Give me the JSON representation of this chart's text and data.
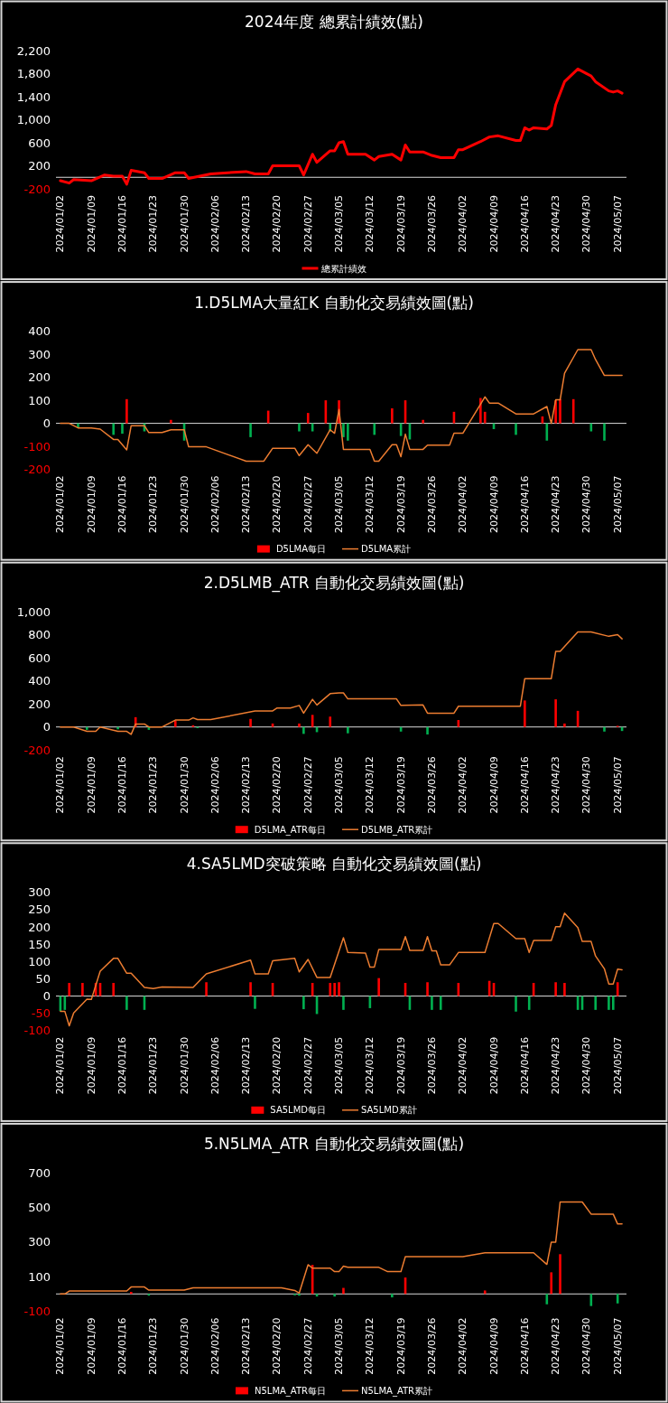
{
  "chart_data": [
    {
      "type": "line",
      "title": "2024年度 總累計績效(點)",
      "legend": "bottom",
      "xlim": [
        "2024-01-01",
        "2024-05-09"
      ],
      "ylim": [
        -200,
        2200
      ],
      "yticks": [
        -200,
        200,
        600,
        {
          "value": 1000,
          "label": "1,000"
        },
        {
          "value": 1400,
          "label": "1,400"
        },
        {
          "value": 1800,
          "label": "1,800"
        },
        {
          "value": 2200,
          "label": "2,200"
        }
      ],
      "xticks": [
        {
          "value": "2024-01-02",
          "label": "2024/01/02"
        },
        {
          "value": "2024-01-09",
          "label": "2024/01/09"
        },
        {
          "value": "2024-01-16",
          "label": "2024/01/16"
        },
        {
          "value": "2024-01-23",
          "label": "2024/01/23"
        },
        {
          "value": "2024-01-30",
          "label": "2024/01/30"
        },
        {
          "value": "2024-02-06",
          "label": "2024/02/06"
        },
        {
          "value": "2024-02-13",
          "label": "2024/02/13"
        },
        {
          "value": "2024-02-20",
          "label": "2024/02/20"
        },
        {
          "value": "2024-02-27",
          "label": "2024/02/27"
        },
        {
          "value": "2024-03-05",
          "label": "2024/03/05"
        },
        {
          "value": "2024-03-12",
          "label": "2024/03/12"
        },
        {
          "value": "2024-03-19",
          "label": "2024/03/19"
        },
        {
          "value": "2024-03-26",
          "label": "2024/03/26"
        },
        {
          "value": "2024-04-02",
          "label": "2024/04/02"
        },
        {
          "value": "2024-04-09",
          "label": "2024/04/09"
        },
        {
          "value": "2024-04-16",
          "label": "2024/04/16"
        },
        {
          "value": "2024-04-23",
          "label": "2024/04/23"
        },
        {
          "value": "2024-04-30",
          "label": "2024/04/30"
        },
        {
          "value": "2024-05-07",
          "label": "2024/05/07"
        }
      ],
      "series": [
        {
          "name": "總累計績效",
          "color": "#ff0000",
          "x": [
            "2024-01-02",
            "2024-01-04",
            "2024-01-05",
            "2024-01-09",
            "2024-01-12",
            "2024-01-14",
            "2024-01-16",
            "2024-01-17",
            "2024-01-18",
            "2024-01-21",
            "2024-01-22",
            "2024-01-25",
            "2024-01-28",
            "2024-01-30",
            "2024-01-31",
            "2024-02-05",
            "2024-02-13",
            "2024-02-15",
            "2024-02-18",
            "2024-02-19",
            "2024-02-25",
            "2024-02-26",
            "2024-02-28",
            "2024-02-29",
            "2024-03-03",
            "2024-03-04",
            "2024-03-05",
            "2024-03-06",
            "2024-03-07",
            "2024-03-11",
            "2024-03-13",
            "2024-03-14",
            "2024-03-17",
            "2024-03-19",
            "2024-03-20",
            "2024-03-21",
            "2024-03-24",
            "2024-03-26",
            "2024-03-28",
            "2024-03-31",
            "2024-04-01",
            "2024-04-02",
            "2024-04-06",
            "2024-04-08",
            "2024-04-10",
            "2024-04-14",
            "2024-04-15",
            "2024-04-16",
            "2024-04-17",
            "2024-04-18",
            "2024-04-21",
            "2024-04-22",
            "2024-04-23",
            "2024-04-25",
            "2024-04-28",
            "2024-05-01",
            "2024-05-02",
            "2024-05-05",
            "2024-05-06",
            "2024-05-07",
            "2024-05-08"
          ],
          "values": [
            -60,
            -100,
            -40,
            -60,
            40,
            20,
            20,
            -120,
            120,
            80,
            -20,
            -20,
            80,
            80,
            -20,
            60,
            100,
            60,
            60,
            200,
            200,
            40,
            400,
            260,
            460,
            460,
            600,
            620,
            400,
            400,
            300,
            360,
            400,
            300,
            560,
            440,
            440,
            380,
            340,
            340,
            480,
            480,
            620,
            700,
            720,
            640,
            640,
            860,
            820,
            860,
            840,
            900,
            1260,
            1660,
            1880,
            1760,
            1660,
            1500,
            1480,
            1500,
            1460
          ]
        }
      ]
    },
    {
      "type": "bar",
      "title": "1.D5LMA大量紅K 自動化交易績效圖(點)",
      "legend": "bottom",
      "xlim": [
        "2024-01-01",
        "2024-05-09"
      ],
      "ylim": [
        -200,
        400
      ],
      "yticks": [
        -200,
        -100,
        0,
        100,
        200,
        300,
        400
      ],
      "xticks": [
        {
          "value": "2024-01-02",
          "label": "2024/01/02"
        },
        {
          "value": "2024-01-09",
          "label": "2024/01/09"
        },
        {
          "value": "2024-01-16",
          "label": "2024/01/16"
        },
        {
          "value": "2024-01-23",
          "label": "2024/01/23"
        },
        {
          "value": "2024-01-30",
          "label": "2024/01/30"
        },
        {
          "value": "2024-02-06",
          "label": "2024/02/06"
        },
        {
          "value": "2024-02-13",
          "label": "2024/02/13"
        },
        {
          "value": "2024-02-20",
          "label": "2024/02/20"
        },
        {
          "value": "2024-02-27",
          "label": "2024/02/27"
        },
        {
          "value": "2024-03-05",
          "label": "2024/03/05"
        },
        {
          "value": "2024-03-12",
          "label": "2024/03/12"
        },
        {
          "value": "2024-03-19",
          "label": "2024/03/19"
        },
        {
          "value": "2024-03-26",
          "label": "2024/03/26"
        },
        {
          "value": "2024-04-02",
          "label": "2024/04/02"
        },
        {
          "value": "2024-04-09",
          "label": "2024/04/09"
        },
        {
          "value": "2024-04-16",
          "label": "2024/04/16"
        },
        {
          "value": "2024-04-23",
          "label": "2024/04/23"
        },
        {
          "value": "2024-04-30",
          "label": "2024/04/30"
        },
        {
          "value": "2024-05-07",
          "label": "2024/05/07"
        }
      ],
      "series": [
        {
          "name": "D5LMA每日",
          "color": "#ff0000",
          "x": [
            "2024-01-06",
            "2024-01-14",
            "2024-01-16",
            "2024-01-17",
            "2024-01-21",
            "2024-01-27",
            "2024-01-30",
            "2024-02-14",
            "2024-02-18",
            "2024-02-25",
            "2024-02-27",
            "2024-02-28",
            "2024-03-02",
            "2024-03-03",
            "2024-03-05",
            "2024-03-06",
            "2024-03-07",
            "2024-03-13",
            "2024-03-17",
            "2024-03-19",
            "2024-03-20",
            "2024-03-21",
            "2024-03-24",
            "2024-03-31",
            "2024-04-06",
            "2024-04-07",
            "2024-04-09",
            "2024-04-14",
            "2024-04-20",
            "2024-04-21",
            "2024-04-23",
            "2024-04-24",
            "2024-04-27",
            "2024-05-01",
            "2024-05-04"
          ],
          "values": [
            -20,
            -50,
            -45,
            105,
            -35,
            15,
            -75,
            -60,
            55,
            -35,
            45,
            -35,
            100,
            -35,
            100,
            -60,
            -75,
            -50,
            65,
            -55,
            100,
            -70,
            15,
            50,
            110,
            50,
            -25,
            -50,
            30,
            -75,
            100,
            105,
            105,
            -35,
            -75
          ],
          "colors": [
            "#00b050",
            "#00b050",
            "#00b050",
            "#ff0000",
            "#00b050",
            "#ff0000",
            "#00b050",
            "#00b050",
            "#ff0000",
            "#00b050",
            "#ff0000",
            "#00b050",
            "#ff0000",
            "#00b050",
            "#ff0000",
            "#00b050",
            "#00b050",
            "#00b050",
            "#ff0000",
            "#00b050",
            "#ff0000",
            "#00b050",
            "#ff0000",
            "#ff0000",
            "#ff0000",
            "#ff0000",
            "#00b050",
            "#00b050",
            "#ff0000",
            "#00b050",
            "#ff0000",
            "#ff0000",
            "#ff0000",
            "#00b050",
            "#00b050"
          ]
        },
        {
          "name": "D5LMA累計",
          "type": "line",
          "color": "#ed7d31",
          "x": [
            "2024-01-02",
            "2024-01-04",
            "2024-01-06",
            "2024-01-09",
            "2024-01-11",
            "2024-01-14",
            "2024-01-15",
            "2024-01-17",
            "2024-01-18",
            "2024-01-21",
            "2024-01-22",
            "2024-01-25",
            "2024-01-27",
            "2024-01-30",
            "2024-01-31",
            "2024-02-04",
            "2024-02-13",
            "2024-02-17",
            "2024-02-19",
            "2024-02-24",
            "2024-02-25",
            "2024-02-27",
            "2024-02-29",
            "2024-03-03",
            "2024-03-04",
            "2024-03-05",
            "2024-03-06",
            "2024-03-12",
            "2024-03-13",
            "2024-03-14",
            "2024-03-17",
            "2024-03-18",
            "2024-03-19",
            "2024-03-20",
            "2024-03-21",
            "2024-03-24",
            "2024-03-25",
            "2024-03-30",
            "2024-03-31",
            "2024-04-02",
            "2024-04-07",
            "2024-04-08",
            "2024-04-10",
            "2024-04-14",
            "2024-04-18",
            "2024-04-21",
            "2024-04-22",
            "2024-04-23",
            "2024-04-24",
            "2024-04-25",
            "2024-04-28",
            "2024-05-01",
            "2024-05-02",
            "2024-05-04",
            "2024-05-08"
          ],
          "values": [
            0,
            0,
            -20,
            -20,
            -25,
            -70,
            -70,
            -115,
            -10,
            -10,
            -40,
            -40,
            -28,
            -28,
            -102,
            -102,
            -164,
            -164,
            -108,
            -108,
            -140,
            -93,
            -130,
            -28,
            -43,
            60,
            -113,
            -113,
            -164,
            -164,
            -93,
            -93,
            -145,
            -47,
            -113,
            -113,
            -95,
            -95,
            -43,
            -43,
            115,
            88,
            88,
            41,
            41,
            73,
            0,
            102,
            102,
            218,
            320,
            320,
            277,
            208,
            208
          ]
        }
      ]
    },
    {
      "type": "bar",
      "title": "2.D5LMB_ATR 自動化交易績效圖(點)",
      "legend": "bottom",
      "xlim": [
        "2024-01-01",
        "2024-05-09"
      ],
      "ylim": [
        -200,
        1000
      ],
      "yticks": [
        -200,
        0,
        200,
        400,
        600,
        800,
        {
          "value": 1000,
          "label": "1,000"
        }
      ],
      "xticks": [
        {
          "value": "2024-01-02",
          "label": "2024/01/02"
        },
        {
          "value": "2024-01-09",
          "label": "2024/01/09"
        },
        {
          "value": "2024-01-16",
          "label": "2024/01/16"
        },
        {
          "value": "2024-01-23",
          "label": "2024/01/23"
        },
        {
          "value": "2024-01-30",
          "label": "2024/01/30"
        },
        {
          "value": "2024-02-06",
          "label": "2024/02/06"
        },
        {
          "value": "2024-02-13",
          "label": "2024/02/13"
        },
        {
          "value": "2024-02-20",
          "label": "2024/02/20"
        },
        {
          "value": "2024-02-27",
          "label": "2024/02/27"
        },
        {
          "value": "2024-03-05",
          "label": "2024/03/05"
        },
        {
          "value": "2024-03-12",
          "label": "2024/03/12"
        },
        {
          "value": "2024-03-19",
          "label": "2024/03/19"
        },
        {
          "value": "2024-03-26",
          "label": "2024/03/26"
        },
        {
          "value": "2024-04-02",
          "label": "2024/04/02"
        },
        {
          "value": "2024-04-09",
          "label": "2024/04/09"
        },
        {
          "value": "2024-04-16",
          "label": "2024/04/16"
        },
        {
          "value": "2024-04-23",
          "label": "2024/04/23"
        },
        {
          "value": "2024-04-30",
          "label": "2024/04/30"
        },
        {
          "value": "2024-05-07",
          "label": "2024/05/07"
        }
      ],
      "series": [
        {
          "name": "D5LMA_ATR每日",
          "color": "#ff0000",
          "x": [
            "2024-01-08",
            "2024-01-15",
            "2024-01-19",
            "2024-01-22",
            "2024-01-28",
            "2024-02-01",
            "2024-02-02",
            "2024-02-14",
            "2024-02-19",
            "2024-02-25",
            "2024-02-26",
            "2024-02-28",
            "2024-02-29",
            "2024-03-03",
            "2024-03-07",
            "2024-03-19",
            "2024-03-25",
            "2024-04-01",
            "2024-04-16",
            "2024-04-23",
            "2024-04-25",
            "2024-04-28",
            "2024-05-04",
            "2024-05-07",
            "2024-05-08"
          ],
          "values": [
            -25,
            -20,
            85,
            -25,
            55,
            15,
            -10,
            70,
            30,
            30,
            -60,
            105,
            -45,
            90,
            -55,
            -40,
            -65,
            60,
            230,
            240,
            30,
            140,
            -40,
            10,
            -35
          ],
          "colors": [
            "#00b050",
            "#00b050",
            "#ff0000",
            "#00b050",
            "#ff0000",
            "#ff0000",
            "#00b050",
            "#ff0000",
            "#ff0000",
            "#ff0000",
            "#00b050",
            "#ff0000",
            "#00b050",
            "#ff0000",
            "#00b050",
            "#00b050",
            "#00b050",
            "#ff0000",
            "#ff0000",
            "#ff0000",
            "#ff0000",
            "#ff0000",
            "#00b050",
            "#ff0000",
            "#00b050"
          ]
        },
        {
          "name": "D5LMB_ATR累計",
          "type": "line",
          "color": "#ed7d31",
          "x": [
            "2024-01-02",
            "2024-01-05",
            "2024-01-08",
            "2024-01-10",
            "2024-01-11",
            "2024-01-15",
            "2024-01-17",
            "2024-01-18",
            "2024-01-19",
            "2024-01-21",
            "2024-01-22",
            "2024-01-25",
            "2024-01-28",
            "2024-01-31",
            "2024-02-01",
            "2024-02-02",
            "2024-02-05",
            "2024-02-15",
            "2024-02-19",
            "2024-02-20",
            "2024-02-23",
            "2024-02-25",
            "2024-02-26",
            "2024-02-28",
            "2024-02-29",
            "2024-03-03",
            "2024-03-05",
            "2024-03-06",
            "2024-03-07",
            "2024-03-18",
            "2024-03-19",
            "2024-03-24",
            "2024-03-25",
            "2024-03-31",
            "2024-04-01",
            "2024-04-15",
            "2024-04-16",
            "2024-04-22",
            "2024-04-23",
            "2024-04-24",
            "2024-04-28",
            "2024-05-01",
            "2024-05-05",
            "2024-05-07",
            "2024-05-08"
          ],
          "values": [
            0,
            0,
            -38,
            -38,
            0,
            -38,
            -38,
            -64,
            26,
            26,
            0,
            0,
            60,
            60,
            79,
            64,
            64,
            139,
            139,
            165,
            165,
            187,
            120,
            240,
            191,
            289,
            296,
            296,
            244,
            244,
            187,
            191,
            120,
            120,
            180,
            180,
            420,
            420,
            656,
            656,
            825,
            825,
            787,
            802,
            765
          ]
        }
      ]
    },
    {
      "type": "bar",
      "title": "4.SA5LMD突破策略 自動化交易績效圖(點)",
      "legend": "bottom",
      "xlim": [
        "2024-01-01",
        "2024-05-09"
      ],
      "ylim": [
        -100,
        300
      ],
      "yticks": [
        -100,
        -50,
        0,
        50,
        100,
        150,
        200,
        250,
        300
      ],
      "xticks": [
        {
          "value": "2024-01-02",
          "label": "2024/01/02"
        },
        {
          "value": "2024-01-09",
          "label": "2024/01/09"
        },
        {
          "value": "2024-01-16",
          "label": "2024/01/16"
        },
        {
          "value": "2024-01-23",
          "label": "2024/01/23"
        },
        {
          "value": "2024-01-30",
          "label": "2024/01/30"
        },
        {
          "value": "2024-02-06",
          "label": "2024/02/06"
        },
        {
          "value": "2024-02-13",
          "label": "2024/02/13"
        },
        {
          "value": "2024-02-20",
          "label": "2024/02/20"
        },
        {
          "value": "2024-02-27",
          "label": "2024/02/27"
        },
        {
          "value": "2024-03-05",
          "label": "2024/03/05"
        },
        {
          "value": "2024-03-12",
          "label": "2024/03/12"
        },
        {
          "value": "2024-03-19",
          "label": "2024/03/19"
        },
        {
          "value": "2024-03-26",
          "label": "2024/03/26"
        },
        {
          "value": "2024-04-02",
          "label": "2024/04/02"
        },
        {
          "value": "2024-04-09",
          "label": "2024/04/09"
        },
        {
          "value": "2024-04-16",
          "label": "2024/04/16"
        },
        {
          "value": "2024-04-23",
          "label": "2024/04/23"
        },
        {
          "value": "2024-04-30",
          "label": "2024/04/30"
        },
        {
          "value": "2024-05-07",
          "label": "2024/05/07"
        }
      ],
      "series": [
        {
          "name": "SA5LMD每日",
          "color": "#ff0000",
          "x": [
            "2024-01-02",
            "2024-01-03",
            "2024-01-04",
            "2024-01-07",
            "2024-01-10",
            "2024-01-11",
            "2024-01-14",
            "2024-01-17",
            "2024-01-21",
            "2024-02-04",
            "2024-02-14",
            "2024-02-15",
            "2024-02-19",
            "2024-02-26",
            "2024-02-28",
            "2024-02-29",
            "2024-03-03",
            "2024-03-04",
            "2024-03-05",
            "2024-03-06",
            "2024-03-12",
            "2024-03-14",
            "2024-03-20",
            "2024-03-21",
            "2024-03-25",
            "2024-03-26",
            "2024-03-28",
            "2024-04-01",
            "2024-04-08",
            "2024-04-09",
            "2024-04-14",
            "2024-04-17",
            "2024-04-18",
            "2024-04-23",
            "2024-04-25",
            "2024-04-28",
            "2024-04-29",
            "2024-05-02",
            "2024-05-05",
            "2024-05-06",
            "2024-05-07"
          ],
          "values": [
            -43,
            -40,
            38,
            38,
            38,
            38,
            38,
            -40,
            -40,
            40,
            40,
            -37,
            38,
            -38,
            38,
            -52,
            38,
            38,
            40,
            -40,
            -35,
            52,
            38,
            -40,
            40,
            -40,
            -40,
            38,
            44,
            38,
            -45,
            -40,
            38,
            40,
            38,
            -40,
            -40,
            -40,
            -40,
            -40,
            40
          ],
          "colors": [
            "#00b050",
            "#00b050",
            "#ff0000",
            "#ff0000",
            "#ff0000",
            "#ff0000",
            "#ff0000",
            "#00b050",
            "#00b050",
            "#ff0000",
            "#ff0000",
            "#00b050",
            "#ff0000",
            "#00b050",
            "#ff0000",
            "#00b050",
            "#ff0000",
            "#ff0000",
            "#ff0000",
            "#00b050",
            "#00b050",
            "#ff0000",
            "#ff0000",
            "#00b050",
            "#ff0000",
            "#00b050",
            "#00b050",
            "#ff0000",
            "#ff0000",
            "#ff0000",
            "#00b050",
            "#00b050",
            "#ff0000",
            "#ff0000",
            "#ff0000",
            "#00b050",
            "#00b050",
            "#00b050",
            "#00b050",
            "#00b050",
            "#ff0000"
          ]
        },
        {
          "name": "SA5LMD累計",
          "type": "line",
          "color": "#ed7d31",
          "x": [
            "2024-01-02",
            "2024-01-03",
            "2024-01-04",
            "2024-01-05",
            "2024-01-08",
            "2024-01-09",
            "2024-01-11",
            "2024-01-14",
            "2024-01-15",
            "2024-01-17",
            "2024-01-18",
            "2024-01-21",
            "2024-01-23",
            "2024-01-25",
            "2024-02-01",
            "2024-02-04",
            "2024-02-14",
            "2024-02-15",
            "2024-02-18",
            "2024-02-19",
            "2024-02-24",
            "2024-02-25",
            "2024-02-27",
            "2024-02-29",
            "2024-03-03",
            "2024-03-06",
            "2024-03-07",
            "2024-03-11",
            "2024-03-12",
            "2024-03-13",
            "2024-03-14",
            "2024-03-19",
            "2024-03-20",
            "2024-03-21",
            "2024-03-24",
            "2024-03-25",
            "2024-03-26",
            "2024-03-27",
            "2024-03-28",
            "2024-03-30",
            "2024-04-01",
            "2024-04-07",
            "2024-04-09",
            "2024-04-10",
            "2024-04-14",
            "2024-04-16",
            "2024-04-17",
            "2024-04-18",
            "2024-04-22",
            "2024-04-23",
            "2024-04-24",
            "2024-04-25",
            "2024-04-28",
            "2024-04-29",
            "2024-05-01",
            "2024-05-02",
            "2024-05-04",
            "2024-05-05",
            "2024-05-06",
            "2024-05-07",
            "2024-05-08"
          ],
          "values": [
            -44,
            -44,
            -86,
            -49,
            -9,
            -10,
            72,
            109,
            109,
            66,
            66,
            25,
            22,
            26,
            25,
            64,
            104,
            64,
            64,
            102,
            109,
            70,
            106,
            54,
            54,
            169,
            126,
            124,
            84,
            84,
            135,
            135,
            172,
            132,
            132,
            172,
            131,
            131,
            90,
            90,
            126,
            126,
            210,
            210,
            166,
            166,
            126,
            161,
            161,
            201,
            201,
            240,
            198,
            158,
            158,
            116,
            79,
            35,
            35,
            78,
            76
          ]
        }
      ]
    },
    {
      "type": "bar",
      "title": "5.N5LMA_ATR 自動化交易績效圖(點)",
      "legend": "bottom",
      "xlim": [
        "2024-01-01",
        "2024-05-09"
      ],
      "ylim": [
        -100,
        700
      ],
      "yticks": [
        -100,
        100,
        300,
        500,
        700
      ],
      "xticks": [
        {
          "value": "2024-01-02",
          "label": "2024/01/02"
        },
        {
          "value": "2024-01-09",
          "label": "2024/01/09"
        },
        {
          "value": "2024-01-16",
          "label": "2024/01/16"
        },
        {
          "value": "2024-01-23",
          "label": "2024/01/23"
        },
        {
          "value": "2024-01-30",
          "label": "2024/01/30"
        },
        {
          "value": "2024-02-06",
          "label": "2024/02/06"
        },
        {
          "value": "2024-02-13",
          "label": "2024/02/13"
        },
        {
          "value": "2024-02-20",
          "label": "2024/02/20"
        },
        {
          "value": "2024-02-27",
          "label": "2024/02/27"
        },
        {
          "value": "2024-03-05",
          "label": "2024/03/05"
        },
        {
          "value": "2024-03-12",
          "label": "2024/03/12"
        },
        {
          "value": "2024-03-19",
          "label": "2024/03/19"
        },
        {
          "value": "2024-03-26",
          "label": "2024/03/26"
        },
        {
          "value": "2024-04-02",
          "label": "2024/04/02"
        },
        {
          "value": "2024-04-09",
          "label": "2024/04/09"
        },
        {
          "value": "2024-04-16",
          "label": "2024/04/16"
        },
        {
          "value": "2024-04-23",
          "label": "2024/04/23"
        },
        {
          "value": "2024-04-30",
          "label": "2024/04/30"
        },
        {
          "value": "2024-05-07",
          "label": "2024/05/07"
        }
      ],
      "series": [
        {
          "name": "N5LMA_ATR每日",
          "color": "#ff0000",
          "x": [
            "2024-01-18",
            "2024-01-22",
            "2024-02-24",
            "2024-02-25",
            "2024-02-28",
            "2024-02-29",
            "2024-03-04",
            "2024-03-06",
            "2024-03-17",
            "2024-03-20",
            "2024-04-07",
            "2024-04-21",
            "2024-04-22",
            "2024-04-24",
            "2024-05-01",
            "2024-05-07"
          ],
          "values": [
            12,
            -10,
            -8,
            -10,
            168,
            -15,
            -15,
            35,
            -20,
            95,
            20,
            -60,
            125,
            230,
            -70,
            -55
          ],
          "colors": [
            "#ff0000",
            "#00b050",
            "#00b050",
            "#00b050",
            "#ff0000",
            "#00b050",
            "#00b050",
            "#ff0000",
            "#00b050",
            "#ff0000",
            "#ff0000",
            "#00b050",
            "#ff0000",
            "#ff0000",
            "#00b050",
            "#00b050"
          ]
        },
        {
          "name": "N5LMA_ATR累計",
          "type": "line",
          "color": "#ed7d31",
          "x": [
            "2024-01-02",
            "2024-01-03",
            "2024-01-04",
            "2024-01-17",
            "2024-01-18",
            "2024-01-21",
            "2024-01-22",
            "2024-01-30",
            "2024-02-01",
            "2024-02-21",
            "2024-02-24",
            "2024-02-25",
            "2024-02-27",
            "2024-02-28",
            "2024-03-03",
            "2024-03-04",
            "2024-03-05",
            "2024-03-06",
            "2024-03-07",
            "2024-03-14",
            "2024-03-16",
            "2024-03-19",
            "2024-03-20",
            "2024-04-02",
            "2024-04-07",
            "2024-04-18",
            "2024-04-21",
            "2024-04-22",
            "2024-04-23",
            "2024-04-24",
            "2024-04-29",
            "2024-05-01",
            "2024-05-06",
            "2024-05-07",
            "2024-05-08"
          ],
          "values": [
            0,
            0,
            17,
            17,
            40,
            40,
            22,
            22,
            35,
            35,
            20,
            5,
            169,
            149,
            149,
            129,
            129,
            161,
            154,
            154,
            129,
            129,
            216,
            216,
            238,
            238,
            171,
            300,
            300,
            532,
            532,
            462,
            462,
            405,
            405
          ]
        }
      ]
    }
  ]
}
